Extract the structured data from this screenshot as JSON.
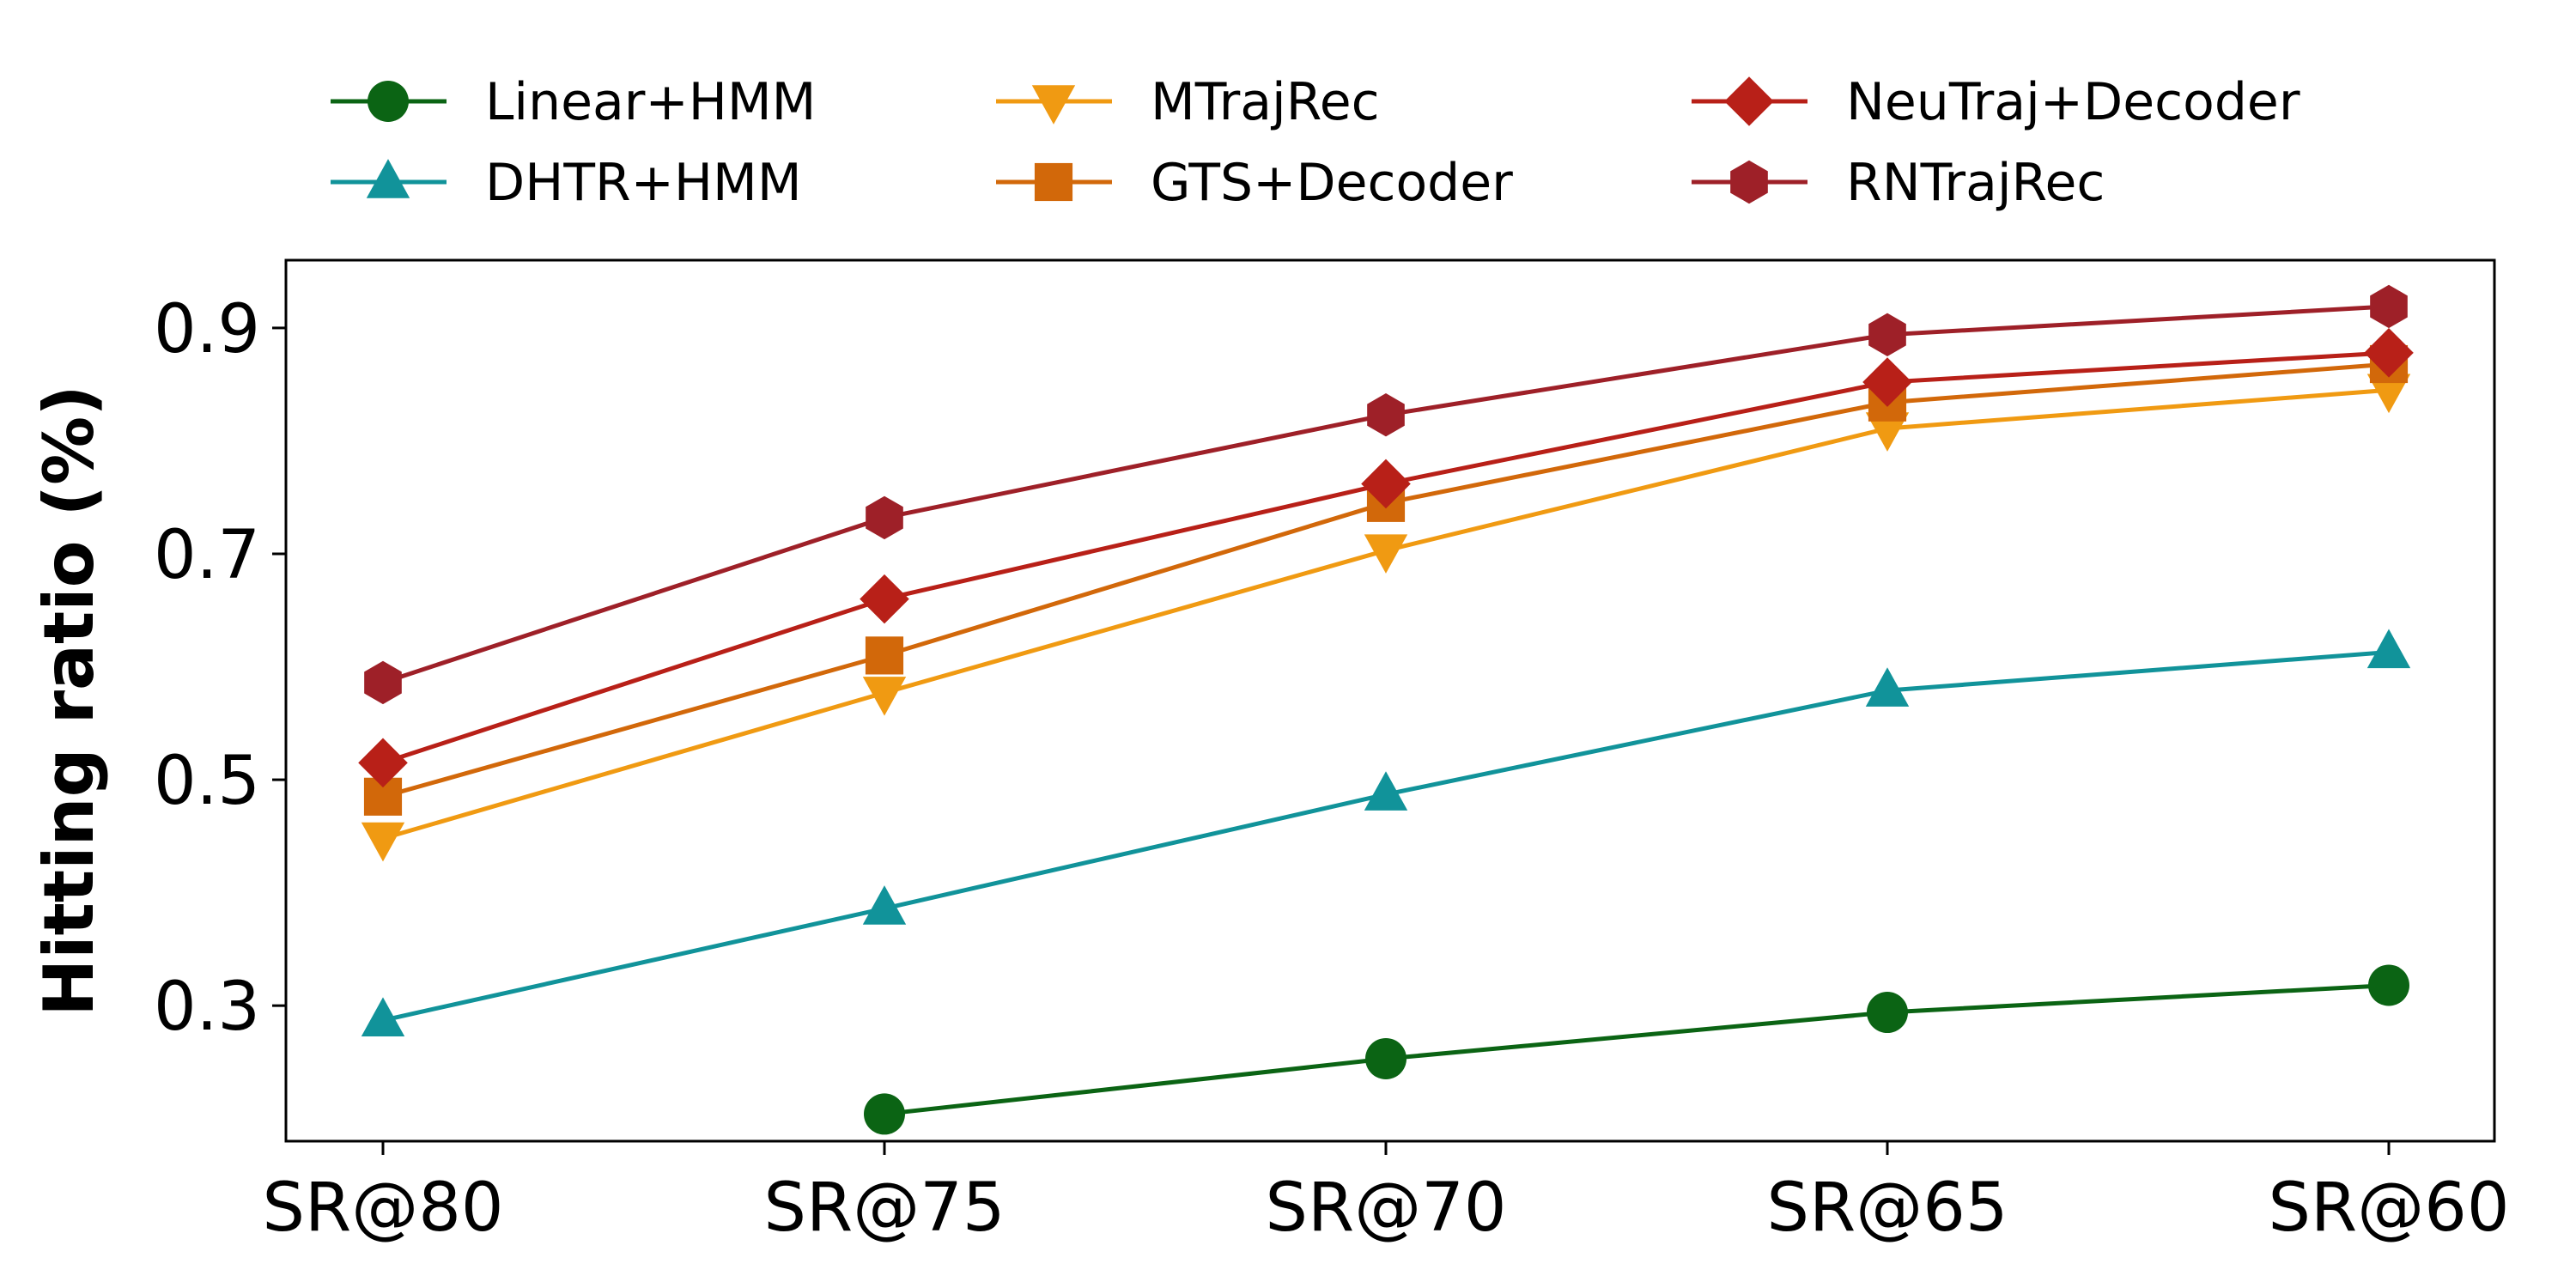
{
  "chart_data": {
    "type": "line",
    "title": "",
    "xlabel": "",
    "ylabel": "Hitting ratio (%)",
    "categories": [
      "SR@80",
      "SR@75",
      "SR@70",
      "SR@65",
      "SR@60"
    ],
    "ylim": [
      0.18,
      0.96
    ],
    "yticks": [
      0.3,
      0.5,
      0.7,
      0.9
    ],
    "ytick_labels": [
      "0.3",
      "0.5",
      "0.7",
      "0.9"
    ],
    "grid": false,
    "legend_position": "top",
    "series": [
      {
        "name": "Linear+HMM",
        "marker": "circle",
        "color": "#0b6414",
        "values": [
          null,
          0.204,
          0.253,
          0.294,
          0.318
        ]
      },
      {
        "name": "DHTR+HMM",
        "marker": "triangle-up",
        "color": "#11939a",
        "values": [
          0.287,
          0.386,
          0.487,
          0.579,
          0.613
        ]
      },
      {
        "name": "MTrajRec",
        "marker": "triangle-down",
        "color": "#f09a12",
        "values": [
          0.448,
          0.577,
          0.703,
          0.811,
          0.845
        ]
      },
      {
        "name": "GTS+Decoder",
        "marker": "square",
        "color": "#d2680a",
        "values": [
          0.485,
          0.61,
          0.745,
          0.834,
          0.868
        ]
      },
      {
        "name": "NeuTraj+Decoder",
        "marker": "diamond",
        "color": "#b82018",
        "values": [
          0.515,
          0.66,
          0.762,
          0.852,
          0.878
        ]
      },
      {
        "name": "RNTrajRec",
        "marker": "hexagon",
        "color": "#9e2028",
        "values": [
          0.586,
          0.732,
          0.823,
          0.894,
          0.919
        ]
      }
    ]
  }
}
